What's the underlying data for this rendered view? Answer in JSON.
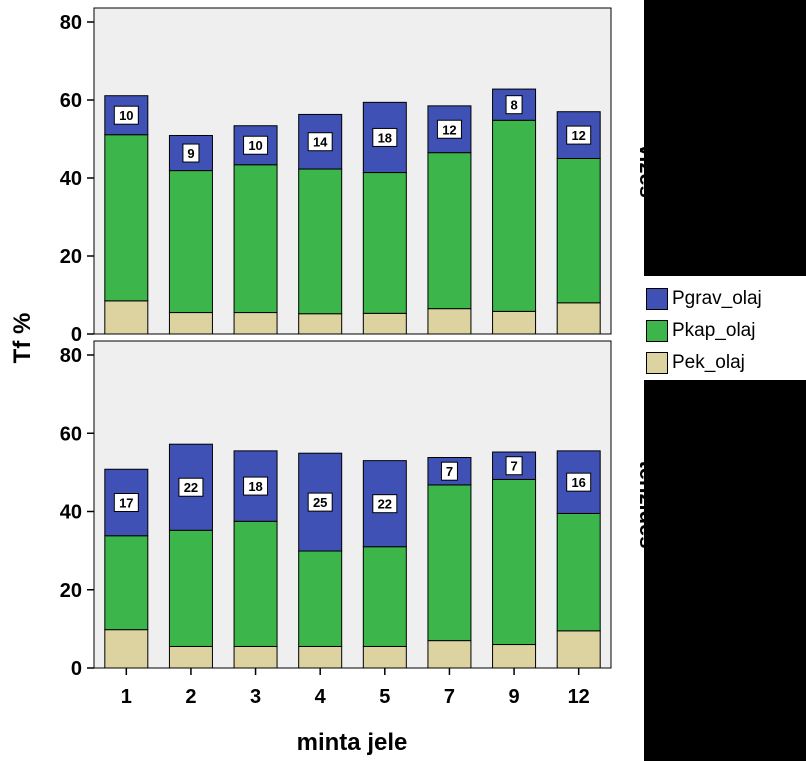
{
  "chart_data": {
    "type": "bar",
    "stacked": true,
    "xlabel": "minta jele",
    "ylabel": "Tf %",
    "ylim": [
      0,
      80
    ],
    "yticks": [
      0,
      20,
      40,
      60,
      80
    ],
    "categories": [
      "1",
      "2",
      "3",
      "4",
      "5",
      "7",
      "9",
      "12"
    ],
    "legend": [
      "Pgrav_olaj",
      "Pkap_olaj",
      "Pek_olaj"
    ],
    "colors": {
      "Pgrav_olaj": "#3f51b5",
      "Pkap_olaj": "#3cb54a",
      "Pek_olaj": "#ddd3a0",
      "panel_bg": "#efefef"
    },
    "panels": [
      {
        "label": "vizes",
        "series": [
          {
            "name": "Pek_olaj",
            "values": [
              8.5,
              5.5,
              5.5,
              5.2,
              5.3,
              6.5,
              5.8,
              8
            ]
          },
          {
            "name": "Pkap_olaj",
            "values": [
              42.6,
              36.4,
              37.9,
              37.1,
              36.1,
              40,
              49,
              37
            ]
          },
          {
            "name": "Pgrav_olaj",
            "values": [
              10,
              9,
              10,
              14,
              18,
              12,
              8,
              12
            ]
          }
        ],
        "bar_labels": [
          "10",
          "9",
          "10",
          "14",
          "18",
          "12",
          "8",
          "12"
        ]
      },
      {
        "label": "tenzides",
        "series": [
          {
            "name": "Pek_olaj",
            "values": [
              9.8,
              5.5,
              5.5,
              5.5,
              5.5,
              7,
              6,
              9.5
            ]
          },
          {
            "name": "Pkap_olaj",
            "values": [
              24,
              29.7,
              32,
              24.4,
              25.5,
              39.8,
              42.2,
              30
            ]
          },
          {
            "name": "Pgrav_olaj",
            "values": [
              17,
              22,
              18,
              25,
              22,
              7,
              7,
              16
            ]
          }
        ],
        "bar_labels": [
          "17",
          "22",
          "18",
          "25",
          "22",
          "7",
          "7",
          "16"
        ]
      }
    ]
  }
}
